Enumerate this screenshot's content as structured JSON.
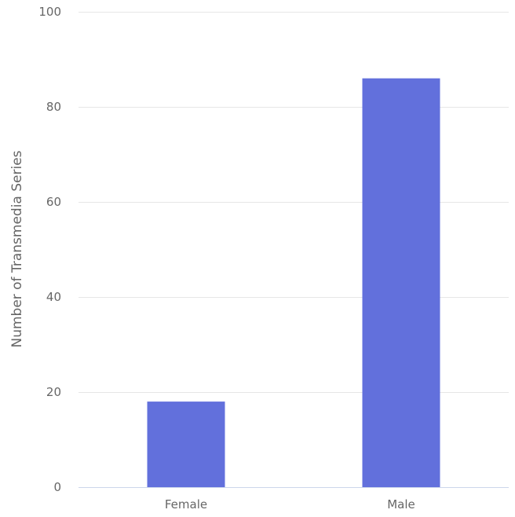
{
  "chart_data": {
    "type": "bar",
    "categories": [
      "Female",
      "Male"
    ],
    "values": [
      18,
      86
    ],
    "title": "",
    "xlabel": "",
    "ylabel": "Number of Transmedia Series",
    "ylim": [
      0,
      100
    ],
    "yticks": [
      "0",
      "20",
      "40",
      "60",
      "80",
      "100"
    ],
    "grid": true,
    "legend": "none",
    "colors": {
      "bar": "#6270dc",
      "grid": "#e6e6e6",
      "baseline": "#ccd6eb",
      "text": "#666666"
    }
  }
}
